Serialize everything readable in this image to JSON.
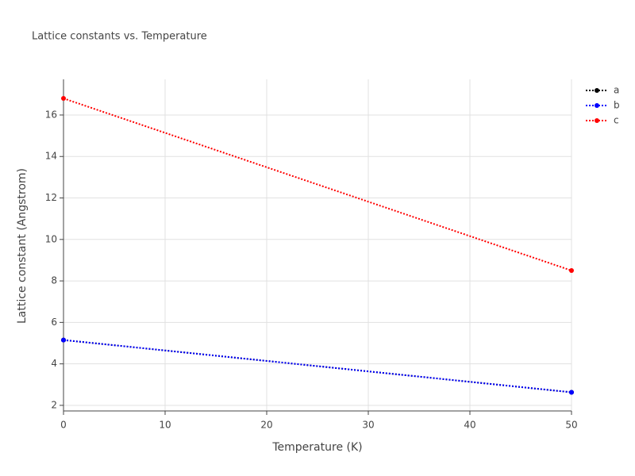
{
  "chart_data": {
    "type": "line",
    "title": "Lattice constants vs. Temperature",
    "x_label": "Temperature (K)",
    "y_label": "Lattice constant (Angstrom)",
    "x": [
      0,
      50
    ],
    "series": [
      {
        "name": "a",
        "color": "#000000",
        "values": [
          5.15,
          2.63
        ]
      },
      {
        "name": "b",
        "color": "#0000ff",
        "values": [
          5.15,
          2.63
        ]
      },
      {
        "name": "c",
        "color": "#ff0000",
        "values": [
          16.8,
          8.5
        ]
      }
    ],
    "xlim": [
      0,
      50
    ],
    "xticks": [
      0,
      10,
      20,
      30,
      40,
      50
    ],
    "ylim": [
      1.73,
      17.72
    ],
    "yticks": [
      2,
      4,
      6,
      8,
      10,
      12,
      14,
      16
    ],
    "grid": true,
    "legend": "right"
  }
}
